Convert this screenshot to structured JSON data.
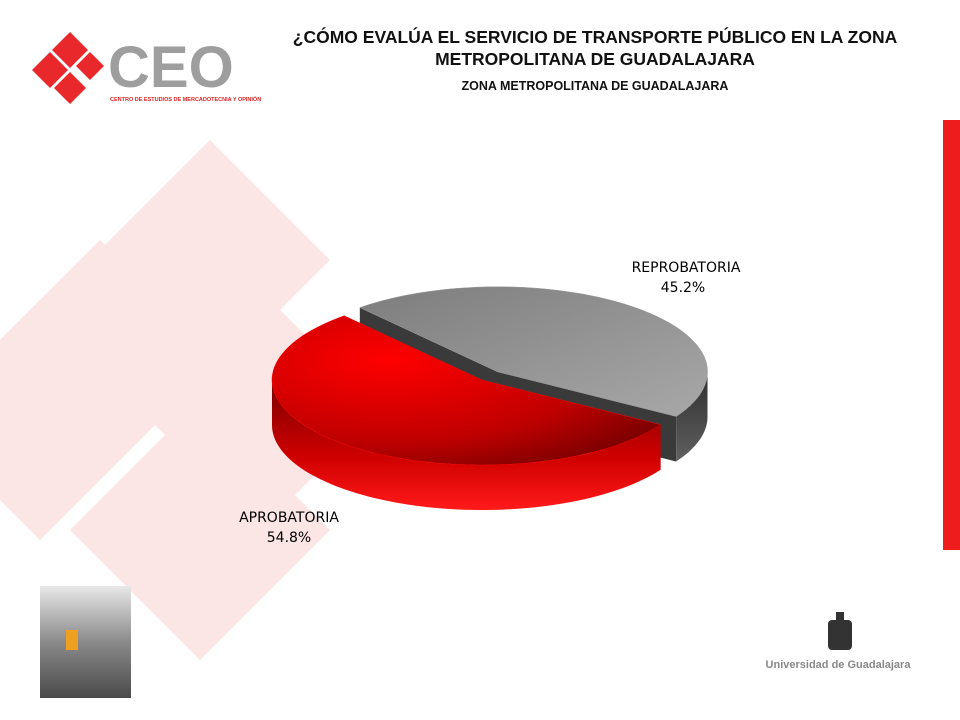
{
  "chart_data": {
    "type": "pie3d",
    "title": "¿CÓMO EVALÚA EL SERVICIO DE TRANSPORTE PÚBLICO EN LA ZONA METROPOLITANA DE GUADALAJARA",
    "subtitle": "ZONA METROPOLITANA DE GUADALAJARA",
    "categories": [
      "REPROBATORIA",
      "APROBATORIA"
    ],
    "values": [
      45.2,
      54.8
    ],
    "value_labels": [
      "45.2%",
      "54.8%"
    ],
    "colors": [
      "#9a9a9a",
      "#ff0000"
    ]
  },
  "logo": {
    "name": "CEO",
    "tagline": "CENTRO DE ESTUDIOS DE MERCADOTECNIA Y OPINIÓN"
  },
  "footer_logo": "Universidad de Guadalajara"
}
